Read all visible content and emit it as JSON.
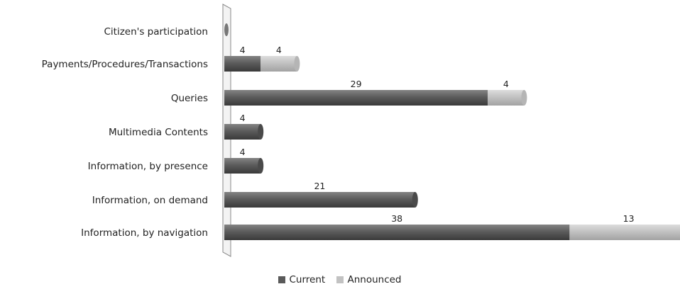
{
  "chart_data": {
    "type": "bar",
    "orientation": "horizontal",
    "stacked": true,
    "categories": [
      "Citizen's participation",
      "Payments/Procedures/Transactions",
      "Queries",
      "Multimedia Contents",
      "Information, by presence",
      "Information, on demand",
      "Information, by navigation"
    ],
    "series": [
      {
        "name": "Current",
        "values": [
          0,
          4,
          29,
          4,
          4,
          21,
          38
        ],
        "color": "#5a5a5a"
      },
      {
        "name": "Announced",
        "values": [
          0,
          4,
          4,
          0,
          0,
          0,
          13
        ],
        "color": "#c2c2c2"
      }
    ],
    "title": "",
    "xlabel": "",
    "ylabel": "",
    "xlim": [
      0,
      50
    ],
    "grid": false,
    "legend_position": "bottom"
  }
}
